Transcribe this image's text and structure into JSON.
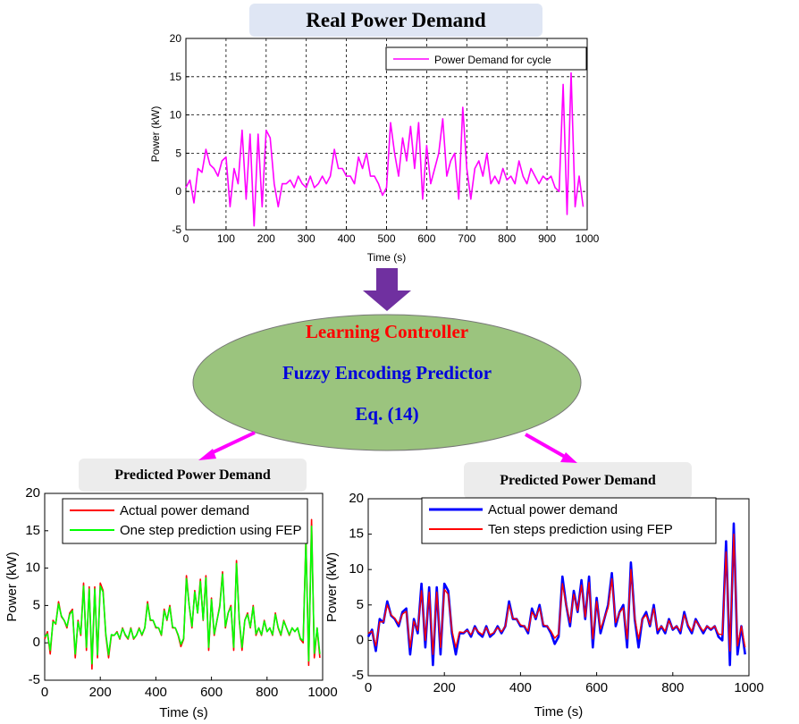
{
  "top_title": "Real Power Demand",
  "bottom_left_title": "Predicted Power Demand",
  "bottom_right_title": "Predicted Power Demand",
  "controller": {
    "line1": "Learning Controller",
    "line2": "Fuzzy Encoding Predictor",
    "line3": "Eq. (14)",
    "line1_color": "#ff0000",
    "line2_color": "#0000dd",
    "line3_color": "#0000dd",
    "ellipse_color": "#9bc47e"
  },
  "colors": {
    "arrow_down": "#7030a0",
    "arrow_side": "#ff00ff",
    "magenta": "#ff00ff",
    "red": "#ff0000",
    "green": "#00ff00",
    "blue": "#0000ff"
  },
  "chart_data": [
    {
      "id": "top",
      "type": "line",
      "xlabel": "Time (s)",
      "ylabel": "Power (kW)",
      "xlim": [
        0,
        1000
      ],
      "ylim": [
        -5,
        20
      ],
      "xticks": [
        "0",
        "100",
        "200",
        "300",
        "400",
        "500",
        "600",
        "700",
        "800",
        "900",
        "1000"
      ],
      "yticks": [
        "-5",
        "0",
        "5",
        "10",
        "15",
        "20"
      ],
      "grid": true,
      "legend_position": "top-right",
      "series": [
        {
          "name": "Power Demand for cycle",
          "color": "#ff00ff",
          "x": [
            0,
            10,
            20,
            30,
            40,
            50,
            60,
            70,
            80,
            90,
            100,
            110,
            120,
            130,
            140,
            150,
            160,
            170,
            180,
            190,
            200,
            210,
            220,
            230,
            240,
            250,
            260,
            270,
            280,
            290,
            300,
            310,
            320,
            330,
            340,
            350,
            360,
            370,
            380,
            390,
            400,
            410,
            420,
            430,
            440,
            450,
            460,
            470,
            480,
            490,
            500,
            510,
            520,
            530,
            540,
            550,
            560,
            570,
            580,
            590,
            600,
            610,
            620,
            630,
            640,
            650,
            660,
            670,
            680,
            690,
            700,
            710,
            720,
            730,
            740,
            750,
            760,
            770,
            780,
            790,
            800,
            810,
            820,
            830,
            840,
            850,
            860,
            870,
            880,
            890,
            900,
            910,
            920,
            930,
            940,
            950,
            960,
            970,
            980,
            990
          ],
          "y": [
            0.5,
            1.5,
            -1.5,
            3,
            2.5,
            5.5,
            3.5,
            3,
            2,
            4,
            4.5,
            -2,
            3,
            1,
            8,
            -1,
            7.5,
            -4.5,
            7.5,
            -2,
            8,
            7,
            1,
            -2,
            1,
            1,
            1.5,
            0.5,
            2,
            1,
            0.5,
            2,
            0.5,
            1,
            2,
            1,
            2,
            5.5,
            3,
            3,
            2,
            2,
            1,
            4.5,
            3,
            5,
            2,
            2,
            1,
            -0.5,
            0.5,
            9,
            5,
            2,
            7,
            4,
            8.5,
            3,
            9,
            -1,
            6,
            1,
            3,
            5,
            9.5,
            2,
            4,
            5,
            -1,
            11,
            3,
            -1,
            3,
            4,
            2,
            5,
            1,
            2,
            1,
            3,
            1.5,
            2,
            1,
            4,
            2,
            1,
            3,
            2,
            1,
            2,
            1.5,
            2,
            0.5,
            0,
            14,
            -3,
            15.5,
            -2,
            2,
            -2
          ]
        }
      ]
    },
    {
      "id": "bottom-left",
      "type": "line",
      "xlabel": "Time (s)",
      "ylabel": "Power (kW)",
      "xlim": [
        0,
        1000
      ],
      "ylim": [
        -5,
        20
      ],
      "xticks": [
        "0",
        "200",
        "400",
        "600",
        "800",
        "1000"
      ],
      "yticks": [
        "-5",
        "0",
        "5",
        "10",
        "15",
        "20"
      ],
      "grid": false,
      "legend_position": "top",
      "series": [
        {
          "name": "Actual power demand",
          "color": "#ff0000",
          "x": [
            0,
            10,
            20,
            30,
            40,
            50,
            60,
            70,
            80,
            90,
            100,
            110,
            120,
            130,
            140,
            150,
            160,
            170,
            180,
            190,
            200,
            210,
            220,
            230,
            240,
            250,
            260,
            270,
            280,
            290,
            300,
            310,
            320,
            330,
            340,
            350,
            360,
            370,
            380,
            390,
            400,
            410,
            420,
            430,
            440,
            450,
            460,
            470,
            480,
            490,
            500,
            510,
            520,
            530,
            540,
            550,
            560,
            570,
            580,
            590,
            600,
            610,
            620,
            630,
            640,
            650,
            660,
            670,
            680,
            690,
            700,
            710,
            720,
            730,
            740,
            750,
            760,
            770,
            780,
            790,
            800,
            810,
            820,
            830,
            840,
            850,
            860,
            870,
            880,
            890,
            900,
            910,
            920,
            930,
            940,
            950,
            960,
            970,
            980,
            990
          ],
          "y": [
            0.5,
            1.5,
            -1.5,
            3,
            2.5,
            5.5,
            3.5,
            3,
            2,
            4,
            4.5,
            -2,
            3,
            1,
            8,
            -1,
            7.5,
            -3.5,
            7.5,
            -2,
            8,
            7,
            1,
            -2,
            1,
            1,
            1.5,
            0.5,
            2,
            1,
            0.5,
            2,
            0.5,
            1,
            2,
            1,
            2,
            5.5,
            3,
            3,
            2,
            2,
            1,
            4.5,
            3,
            5,
            2,
            2,
            1,
            -0.5,
            0.5,
            9,
            5,
            2,
            7,
            4,
            8.5,
            3,
            9,
            -1,
            6,
            1,
            3,
            5,
            9.5,
            2,
            4,
            5,
            -1,
            11,
            3,
            -1,
            3,
            4,
            2,
            5,
            1,
            2,
            1,
            3,
            1.5,
            2,
            1,
            4,
            2,
            1,
            3,
            2,
            1,
            2,
            1.5,
            2,
            0.5,
            0,
            14,
            -3,
            16.5,
            -2,
            2,
            -2
          ]
        },
        {
          "name": "One step prediction using FEP",
          "color": "#00ff00",
          "x": [
            0,
            10,
            20,
            30,
            40,
            50,
            60,
            70,
            80,
            90,
            100,
            110,
            120,
            130,
            140,
            150,
            160,
            170,
            180,
            190,
            200,
            210,
            220,
            230,
            240,
            250,
            260,
            270,
            280,
            290,
            300,
            310,
            320,
            330,
            340,
            350,
            360,
            370,
            380,
            390,
            400,
            410,
            420,
            430,
            440,
            450,
            460,
            470,
            480,
            490,
            500,
            510,
            520,
            530,
            540,
            550,
            560,
            570,
            580,
            590,
            600,
            610,
            620,
            630,
            640,
            650,
            660,
            670,
            680,
            690,
            700,
            710,
            720,
            730,
            740,
            750,
            760,
            770,
            780,
            790,
            800,
            810,
            820,
            830,
            840,
            850,
            860,
            870,
            880,
            890,
            900,
            910,
            920,
            930,
            940,
            950,
            960,
            970,
            980,
            990
          ],
          "y": [
            0.8,
            1.2,
            -1,
            2.8,
            2.6,
            5.2,
            3.6,
            3,
            2.2,
            3.8,
            4.3,
            -1.5,
            2.8,
            1.2,
            7.6,
            -0.6,
            7.2,
            -2.8,
            7.2,
            -1.6,
            7.6,
            6.8,
            1.2,
            -1.6,
            1.1,
            1,
            1.4,
            0.6,
            1.9,
            1.1,
            0.6,
            1.9,
            0.6,
            1,
            1.9,
            1.1,
            2,
            5.2,
            3.1,
            3,
            2.1,
            2,
            1.1,
            4.3,
            3.1,
            4.8,
            2.1,
            2,
            1.1,
            -0.2,
            0.6,
            8.6,
            5,
            2.2,
            6.8,
            4,
            8.2,
            3.1,
            8.7,
            -0.6,
            5.8,
            1.2,
            3,
            4.8,
            9.2,
            2.2,
            4,
            4.8,
            -0.6,
            10.6,
            3.1,
            -0.6,
            3,
            3.8,
            2.1,
            4.8,
            1.2,
            2,
            1.1,
            2.9,
            1.5,
            2,
            1.1,
            3.8,
            2.1,
            1.1,
            2.9,
            2,
            1.1,
            2,
            1.5,
            2,
            0.6,
            0.3,
            13.5,
            -2.4,
            15.6,
            -1.4,
            2,
            -1.5
          ]
        }
      ]
    },
    {
      "id": "bottom-right",
      "type": "line",
      "xlabel": "Time (s)",
      "ylabel": "Power (kW)",
      "xlim": [
        0,
        1000
      ],
      "ylim": [
        -5,
        20
      ],
      "xticks": [
        "0",
        "200",
        "400",
        "600",
        "800",
        "1000"
      ],
      "yticks": [
        "-5",
        "0",
        "5",
        "10",
        "15",
        "20"
      ],
      "grid": false,
      "legend_position": "top",
      "series": [
        {
          "name": "Actual power demand",
          "color": "#0000ff",
          "x": [
            0,
            10,
            20,
            30,
            40,
            50,
            60,
            70,
            80,
            90,
            100,
            110,
            120,
            130,
            140,
            150,
            160,
            170,
            180,
            190,
            200,
            210,
            220,
            230,
            240,
            250,
            260,
            270,
            280,
            290,
            300,
            310,
            320,
            330,
            340,
            350,
            360,
            370,
            380,
            390,
            400,
            410,
            420,
            430,
            440,
            450,
            460,
            470,
            480,
            490,
            500,
            510,
            520,
            530,
            540,
            550,
            560,
            570,
            580,
            590,
            600,
            610,
            620,
            630,
            640,
            650,
            660,
            670,
            680,
            690,
            700,
            710,
            720,
            730,
            740,
            750,
            760,
            770,
            780,
            790,
            800,
            810,
            820,
            830,
            840,
            850,
            860,
            870,
            880,
            890,
            900,
            910,
            920,
            930,
            940,
            950,
            960,
            970,
            980,
            990
          ],
          "y": [
            0.5,
            1.5,
            -1.5,
            3,
            2.5,
            5.5,
            3.5,
            3,
            2,
            4,
            4.5,
            -2,
            3,
            1,
            8,
            -1,
            7.5,
            -3.5,
            7.5,
            -2,
            8,
            7,
            1,
            -2,
            1,
            1,
            1.5,
            0.5,
            2,
            1,
            0.5,
            2,
            0.5,
            1,
            2,
            1,
            2,
            5.5,
            3,
            3,
            2,
            2,
            1,
            4.5,
            3,
            5,
            2,
            2,
            1,
            -0.5,
            0.5,
            9,
            5,
            2,
            7,
            4,
            8.5,
            3,
            9,
            -1,
            6,
            1,
            3,
            5,
            9.5,
            2,
            4,
            5,
            -1,
            11,
            3,
            -1,
            3,
            4,
            2,
            5,
            1,
            2,
            1,
            3,
            1.5,
            2,
            1,
            4,
            2,
            1,
            3,
            2,
            1,
            2,
            1.5,
            2,
            0.5,
            0,
            14,
            -3.5,
            16.5,
            -2,
            2,
            -2
          ]
        },
        {
          "name": "Ten steps prediction using FEP",
          "color": "#ff0000",
          "x": [
            0,
            10,
            20,
            30,
            40,
            50,
            60,
            70,
            80,
            90,
            100,
            110,
            120,
            130,
            140,
            150,
            160,
            170,
            180,
            190,
            200,
            210,
            220,
            230,
            240,
            250,
            260,
            270,
            280,
            290,
            300,
            310,
            320,
            330,
            340,
            350,
            360,
            370,
            380,
            390,
            400,
            410,
            420,
            430,
            440,
            450,
            460,
            470,
            480,
            490,
            500,
            510,
            520,
            530,
            540,
            550,
            560,
            570,
            580,
            590,
            600,
            610,
            620,
            630,
            640,
            650,
            660,
            670,
            680,
            690,
            700,
            710,
            720,
            730,
            740,
            750,
            760,
            770,
            780,
            790,
            800,
            810,
            820,
            830,
            840,
            850,
            860,
            870,
            880,
            890,
            900,
            910,
            920,
            930,
            940,
            950,
            960,
            970,
            980,
            990
          ],
          "y": [
            1,
            1.3,
            -0.8,
            2.6,
            2.6,
            5,
            3.6,
            3.1,
            2.3,
            3.7,
            4.1,
            -1,
            2.7,
            1.4,
            7,
            0,
            6.8,
            -2,
            6.8,
            -1,
            7.2,
            6.5,
            1.4,
            -1,
            1.2,
            1.1,
            1.4,
            0.8,
            1.8,
            1.2,
            0.8,
            1.8,
            0.8,
            1.1,
            1.8,
            1.2,
            2,
            5,
            3.1,
            3,
            2.2,
            2,
            1.3,
            4,
            3.2,
            4.6,
            2.2,
            2,
            1.3,
            0.3,
            0.9,
            8,
            5,
            2.5,
            6.5,
            4.2,
            7.8,
            3.3,
            8.2,
            0.2,
            5.5,
            1.6,
            3.1,
            4.6,
            8.7,
            2.5,
            3.9,
            4.6,
            0.2,
            10,
            3.2,
            0.2,
            3,
            3.6,
            2.2,
            4.5,
            1.4,
            2,
            1.3,
            2.8,
            1.6,
            2,
            1.3,
            3.6,
            2.2,
            1.3,
            2.8,
            2,
            1.3,
            2,
            1.6,
            2,
            0.9,
            0.8,
            12.5,
            -1.5,
            15,
            -0.8,
            2,
            -1
          ]
        }
      ]
    }
  ]
}
